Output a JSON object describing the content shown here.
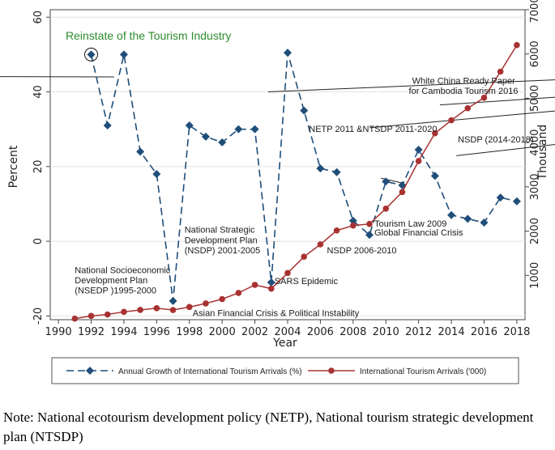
{
  "chart_data": {
    "type": "line",
    "xlabel": "Year",
    "ylabel_left": "Percent",
    "ylabel_right": "Thousand",
    "x_ticks": [
      1990,
      1992,
      1994,
      1996,
      1998,
      2000,
      2002,
      2004,
      2006,
      2008,
      2010,
      2012,
      2014,
      2016,
      2018
    ],
    "xlim": [
      1989.5,
      2018.5
    ],
    "ylim_left": [
      -21,
      62
    ],
    "ylim_right": [
      0,
      7000
    ],
    "y_ticks_left": [
      -20,
      0,
      20,
      40,
      60
    ],
    "y_ticks_right": [
      1000,
      2000,
      3000,
      4000,
      5000,
      6000,
      7000
    ],
    "series": [
      {
        "name": "Annual Growth of International Tourism Arrivals (%)",
        "axis": "left",
        "color": "#1f4e79",
        "marker": "diamond",
        "x": [
          1992,
          1993,
          1994,
          1995,
          1996,
          1997,
          1998,
          1999,
          2000,
          2001,
          2002,
          2003,
          2004,
          2005,
          2006,
          2007,
          2008,
          2009,
          2010,
          2011,
          2012,
          2013,
          2014,
          2015,
          2016,
          2017,
          2018
        ],
        "values": [
          50,
          31,
          50,
          24,
          18,
          -16,
          31,
          28,
          26.5,
          30,
          30,
          -11,
          50.5,
          35,
          19.5,
          18.5,
          5.5,
          1.7,
          16,
          15,
          24.5,
          17.5,
          7,
          6,
          5,
          11.7,
          10.7
        ]
      },
      {
        "name": "International Tourism Arrivals ('000)",
        "axis": "right",
        "color": "#a83232",
        "marker": "circle",
        "x": [
          1991,
          1992,
          1993,
          1994,
          1995,
          1996,
          1997,
          1998,
          1999,
          2000,
          2001,
          2002,
          2003,
          2004,
          2005,
          2006,
          2007,
          2008,
          2009,
          2010,
          2011,
          2012,
          2013,
          2014,
          2015,
          2016,
          2017,
          2018
        ],
        "values": [
          25,
          85,
          118,
          177,
          220,
          260,
          219,
          286,
          367,
          466,
          605,
          786,
          701,
          1055,
          1422,
          1700,
          2015,
          2125,
          2162,
          2508,
          2882,
          3584,
          4210,
          4503,
          4775,
          5012,
          5602,
          6201
        ]
      }
    ],
    "annotations": [
      {
        "text": "Reinstate of the Tourism Industry",
        "x": 1992,
        "y": 50,
        "axis": "left",
        "style": "green"
      },
      {
        "text": "National Socioeconomic",
        "x": 1991,
        "y": -8.5,
        "axis": "left"
      },
      {
        "text": "Development Plan",
        "x": 1991,
        "y": -11.3,
        "axis": "left"
      },
      {
        "text": "(NSEDP )1995-2000",
        "x": 1991,
        "y": -14,
        "axis": "left"
      },
      {
        "text": "National Strategic",
        "x": 1997.7,
        "y": 2.3,
        "axis": "left"
      },
      {
        "text": "Development Plan",
        "x": 1997.7,
        "y": -0.5,
        "axis": "left"
      },
      {
        "text": "(NSDP) 2001-2005",
        "x": 1997.7,
        "y": -3.2,
        "axis": "left"
      },
      {
        "text": "Asian Financial Crisis & Political Instability",
        "x": 1998.2,
        "y": -20,
        "axis": "left"
      },
      {
        "text": "SARS Epidemic",
        "x": 2003.2,
        "y": -11.5,
        "axis": "left"
      },
      {
        "text": "NSDP 2006-2010",
        "x": 2006.4,
        "y": -3.2,
        "axis": "left"
      },
      {
        "text": "Tourism Law 2009",
        "x": 2009.3,
        "y": 3.9,
        "axis": "left"
      },
      {
        "text": "Global Financial Crisis",
        "x": 2009.3,
        "y": 1.5,
        "axis": "left"
      },
      {
        "text": "NETP 2011 &NTSDP 2011-2020",
        "x": 2005.3,
        "y": 29.3,
        "axis": "left"
      },
      {
        "text": "White China Ready Paper",
        "x": 2011.6,
        "y": 42.2,
        "axis": "left"
      },
      {
        "text": "for Cambodia Tourism 2016",
        "x": 2011.4,
        "y": 39.5,
        "axis": "left"
      },
      {
        "text": "NSDP (2014-2018)",
        "x": 2014.4,
        "y": 26.5,
        "axis": "left"
      }
    ]
  },
  "note": "Note: National ecotourism development policy (NETP), National tourism strategic development plan (NTSDP)"
}
